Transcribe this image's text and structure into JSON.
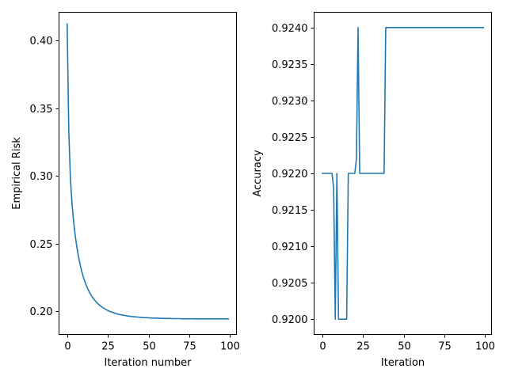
{
  "chart_data": [
    {
      "type": "line",
      "xlabel": "Iteration number",
      "ylabel": "Empirical Risk",
      "xlim": [
        -5,
        104
      ],
      "ylim": [
        0.183,
        0.421
      ],
      "xticks": [
        0,
        25,
        50,
        75,
        100
      ],
      "xtick_labels": [
        "0",
        "25",
        "50",
        "75",
        "100"
      ],
      "yticks": [
        0.2,
        0.25,
        0.3,
        0.35,
        0.4
      ],
      "ytick_labels": [
        "0.20",
        "0.25",
        "0.30",
        "0.35",
        "0.40"
      ],
      "grid": false,
      "series": [
        {
          "color": "#1f77b4",
          "x": [
            0,
            1,
            2,
            3,
            4,
            5,
            6,
            7,
            8,
            9,
            10,
            11,
            12,
            13,
            14,
            15,
            16,
            17,
            18,
            19,
            20,
            21,
            22,
            23,
            24,
            25,
            26,
            27,
            28,
            29,
            30,
            31,
            32,
            33,
            34,
            35,
            36,
            37,
            38,
            39,
            40,
            41,
            42,
            43,
            44,
            45,
            46,
            47,
            48,
            49,
            50,
            51,
            52,
            53,
            54,
            55,
            56,
            57,
            58,
            59,
            60,
            61,
            62,
            63,
            64,
            65,
            66,
            67,
            68,
            69,
            70,
            71,
            72,
            73,
            74,
            75,
            76,
            77,
            78,
            79,
            80,
            81,
            82,
            83,
            84,
            85,
            86,
            87,
            88,
            89,
            90,
            91,
            92,
            93,
            94,
            95,
            96,
            97,
            98,
            99
          ],
          "values": [
            0.4124,
            0.3331,
            0.2983,
            0.2793,
            0.2659,
            0.2556,
            0.2472,
            0.2402,
            0.2344,
            0.2294,
            0.2252,
            0.2216,
            0.2185,
            0.2158,
            0.2135,
            0.2115,
            0.2097,
            0.2082,
            0.2068,
            0.2056,
            0.2046,
            0.2036,
            0.2028,
            0.202,
            0.2014,
            0.2007,
            0.2002,
            0.1997,
            0.1993,
            0.1989,
            0.1985,
            0.1981,
            0.1978,
            0.1976,
            0.1973,
            0.1971,
            0.1969,
            0.1967,
            0.1965,
            0.1964,
            0.1962,
            0.1961,
            0.196,
            0.1959,
            0.1958,
            0.1957,
            0.1956,
            0.1955,
            0.1954,
            0.1954,
            0.1953,
            0.1952,
            0.1952,
            0.1951,
            0.1951,
            0.195,
            0.195,
            0.195,
            0.1949,
            0.1949,
            0.1949,
            0.1948,
            0.1948,
            0.1948,
            0.1948,
            0.1947,
            0.1947,
            0.1947,
            0.1947,
            0.1947,
            0.1946,
            0.1946,
            0.1946,
            0.1946,
            0.1946,
            0.1946,
            0.1946,
            0.1946,
            0.1946,
            0.1945,
            0.1945,
            0.1945,
            0.1945,
            0.1945,
            0.1945,
            0.1945,
            0.1945,
            0.1945,
            0.1945,
            0.1945,
            0.1945,
            0.1945,
            0.1945,
            0.1945,
            0.1945,
            0.1945,
            0.1945,
            0.1945,
            0.1945,
            0.1945
          ]
        }
      ]
    },
    {
      "type": "line",
      "xlabel": "Iteration",
      "ylabel": "Accuracy",
      "xlim": [
        -5,
        104
      ],
      "ylim": [
        0.91979,
        0.92421
      ],
      "xticks": [
        0,
        25,
        50,
        75,
        100
      ],
      "xtick_labels": [
        "0",
        "25",
        "50",
        "75",
        "100"
      ],
      "yticks": [
        0.92,
        0.9205,
        0.921,
        0.9215,
        0.922,
        0.9225,
        0.923,
        0.9235,
        0.924
      ],
      "ytick_labels": [
        "0.9200",
        "0.9205",
        "0.9210",
        "0.9215",
        "0.9220",
        "0.9225",
        "0.9230",
        "0.9235",
        "0.9240"
      ],
      "grid": false,
      "series": [
        {
          "color": "#1f77b4",
          "x": [
            0,
            1,
            2,
            3,
            4,
            5,
            6,
            7,
            8,
            9,
            10,
            11,
            12,
            13,
            14,
            15,
            16,
            17,
            18,
            19,
            20,
            21,
            22,
            23,
            24,
            25,
            26,
            27,
            28,
            29,
            30,
            31,
            32,
            33,
            34,
            35,
            36,
            37,
            38,
            39,
            40,
            41,
            42,
            43,
            44,
            45,
            46,
            47,
            48,
            49,
            50,
            51,
            52,
            53,
            54,
            55,
            56,
            57,
            58,
            59,
            60,
            61,
            62,
            63,
            64,
            65,
            66,
            67,
            68,
            69,
            70,
            71,
            72,
            73,
            74,
            75,
            76,
            77,
            78,
            79,
            80,
            81,
            82,
            83,
            84,
            85,
            86,
            87,
            88,
            89,
            90,
            91,
            92,
            93,
            94,
            95,
            96,
            97,
            98,
            99
          ],
          "values": [
            0.922,
            0.922,
            0.922,
            0.922,
            0.922,
            0.922,
            0.922,
            0.9218,
            0.92,
            0.922,
            0.92,
            0.92,
            0.92,
            0.92,
            0.92,
            0.92,
            0.922,
            0.922,
            0.922,
            0.922,
            0.922,
            0.9222,
            0.924,
            0.922,
            0.922,
            0.922,
            0.922,
            0.922,
            0.922,
            0.922,
            0.922,
            0.922,
            0.922,
            0.922,
            0.922,
            0.922,
            0.922,
            0.922,
            0.922,
            0.924,
            0.924,
            0.924,
            0.924,
            0.924,
            0.924,
            0.924,
            0.924,
            0.924,
            0.924,
            0.924,
            0.924,
            0.924,
            0.924,
            0.924,
            0.924,
            0.924,
            0.924,
            0.924,
            0.924,
            0.924,
            0.924,
            0.924,
            0.924,
            0.924,
            0.924,
            0.924,
            0.924,
            0.924,
            0.924,
            0.924,
            0.924,
            0.924,
            0.924,
            0.924,
            0.924,
            0.924,
            0.924,
            0.924,
            0.924,
            0.924,
            0.924,
            0.924,
            0.924,
            0.924,
            0.924,
            0.924,
            0.924,
            0.924,
            0.924,
            0.924,
            0.924,
            0.924,
            0.924,
            0.924,
            0.924,
            0.924,
            0.924,
            0.924,
            0.924,
            0.924
          ]
        }
      ]
    }
  ]
}
